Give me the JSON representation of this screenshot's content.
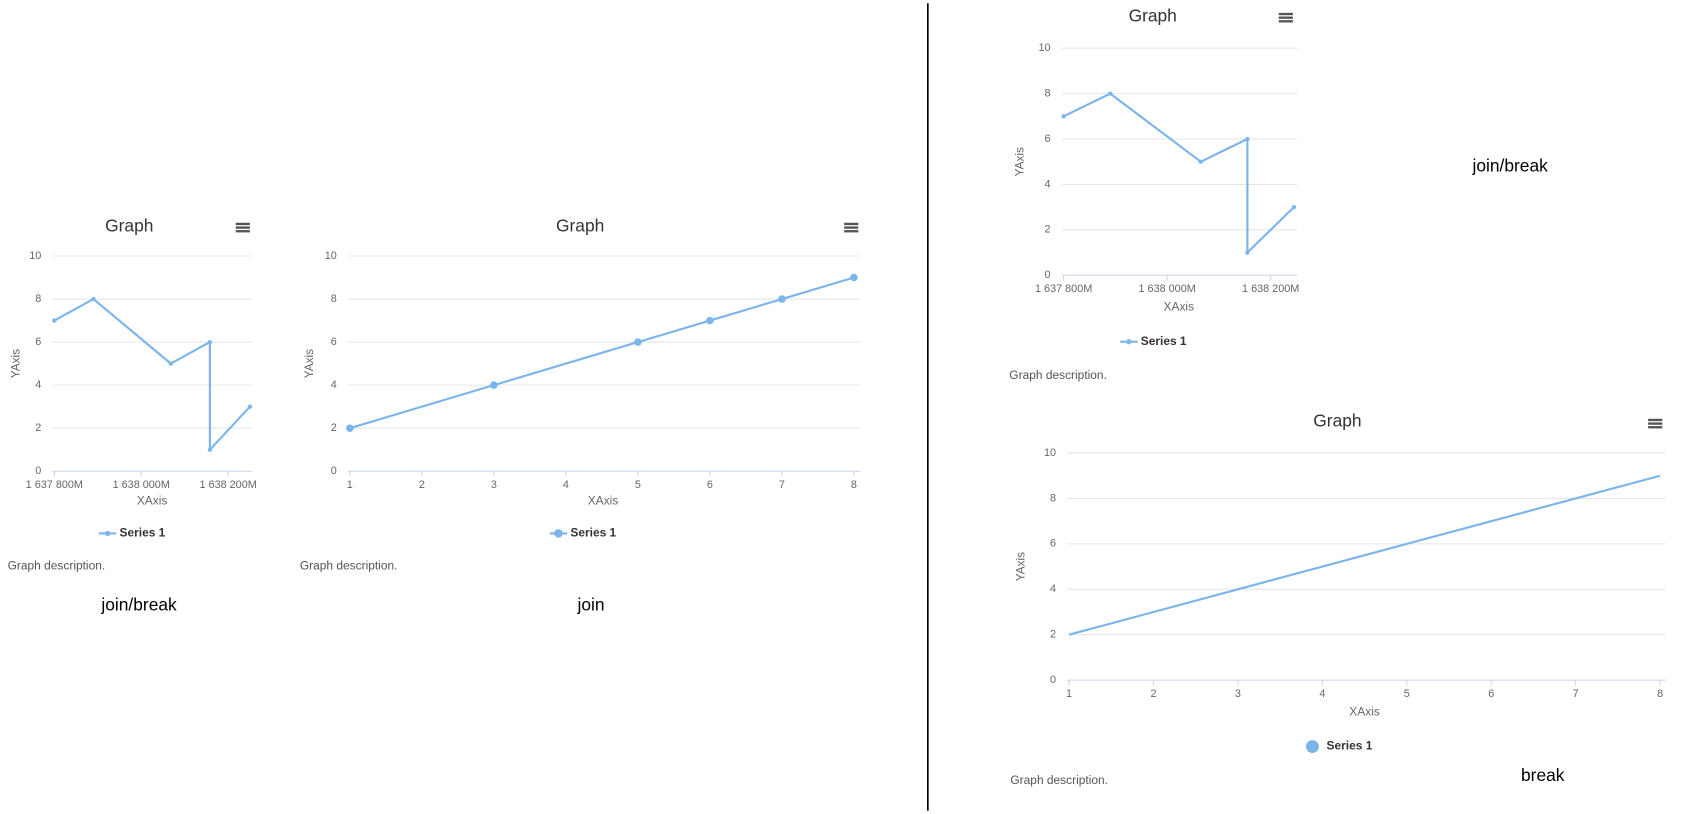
{
  "chart_data": [
    {
      "type": "line",
      "title": "Graph",
      "x_label": "XAxis",
      "y_label": "YAxis",
      "x": [
        1637800,
        1637890,
        1638068,
        1638158,
        1638158,
        1638250
      ],
      "series": [
        {
          "name": "Series 1",
          "color": "#7cb5ec",
          "values": [
            7,
            8,
            5,
            6,
            1,
            3
          ]
        }
      ],
      "xlim": [
        1637800,
        1638250
      ],
      "xticks": [
        {
          "value": 1637800,
          "label": "1 637 800M"
        },
        {
          "value": 1638000,
          "label": "1 638 000M"
        },
        {
          "value": 1638200,
          "label": "1 638 200M"
        }
      ],
      "ylim": [
        0,
        10
      ],
      "yticks": [
        0,
        2,
        4,
        6,
        8,
        10
      ],
      "grid": true,
      "markers": true,
      "description": "Graph description.",
      "note": "join/break"
    },
    {
      "type": "line",
      "title": "Graph",
      "x_label": "XAxis",
      "y_label": "YAxis",
      "x": [
        1,
        3,
        5,
        6,
        7,
        8
      ],
      "series": [
        {
          "name": "Series 1",
          "color": "#7cb5ec",
          "values": [
            2,
            4,
            6,
            7,
            8,
            9
          ]
        }
      ],
      "xlim": [
        1,
        8
      ],
      "xticks": [
        1,
        2,
        3,
        4,
        5,
        6,
        7,
        8
      ],
      "ylim": [
        0,
        10
      ],
      "yticks": [
        0,
        2,
        4,
        6,
        8,
        10
      ],
      "grid": true,
      "markers": true,
      "description": "Graph description.",
      "note": "join"
    },
    {
      "type": "line",
      "title": "Graph",
      "x_label": "XAxis",
      "y_label": "YAxis",
      "x": [
        1637800,
        1637890,
        1638065,
        1638155,
        1638155,
        1638245
      ],
      "series": [
        {
          "name": "Series 1",
          "color": "#7cb5ec",
          "values": [
            7,
            8,
            5,
            6,
            1,
            3
          ]
        }
      ],
      "xlim": [
        1637800,
        1638245
      ],
      "xticks": [
        {
          "value": 1637800,
          "label": "1 637 800M"
        },
        {
          "value": 1638000,
          "label": "1 638 000M"
        },
        {
          "value": 1638200,
          "label": "1 638 200M"
        }
      ],
      "ylim": [
        0,
        10
      ],
      "yticks": [
        0,
        2,
        4,
        6,
        8,
        10
      ],
      "grid": true,
      "markers": true,
      "description": "Graph description.",
      "note": "join/break"
    },
    {
      "type": "line",
      "title": "Graph",
      "x_label": "XAxis",
      "y_label": "YAxis",
      "x": [
        1,
        3,
        5,
        6,
        7,
        8
      ],
      "series": [
        {
          "name": "Series 1",
          "color": "#7cb5ec",
          "values": [
            2,
            4,
            6,
            7,
            8,
            9
          ]
        }
      ],
      "xlim": [
        1,
        8
      ],
      "xticks": [
        1,
        2,
        3,
        4,
        5,
        6,
        7,
        8
      ],
      "ylim": [
        0,
        10
      ],
      "yticks": [
        0,
        2,
        4,
        6,
        8,
        10
      ],
      "grid": true,
      "markers": false,
      "description": "Graph description.",
      "note": "break"
    }
  ]
}
